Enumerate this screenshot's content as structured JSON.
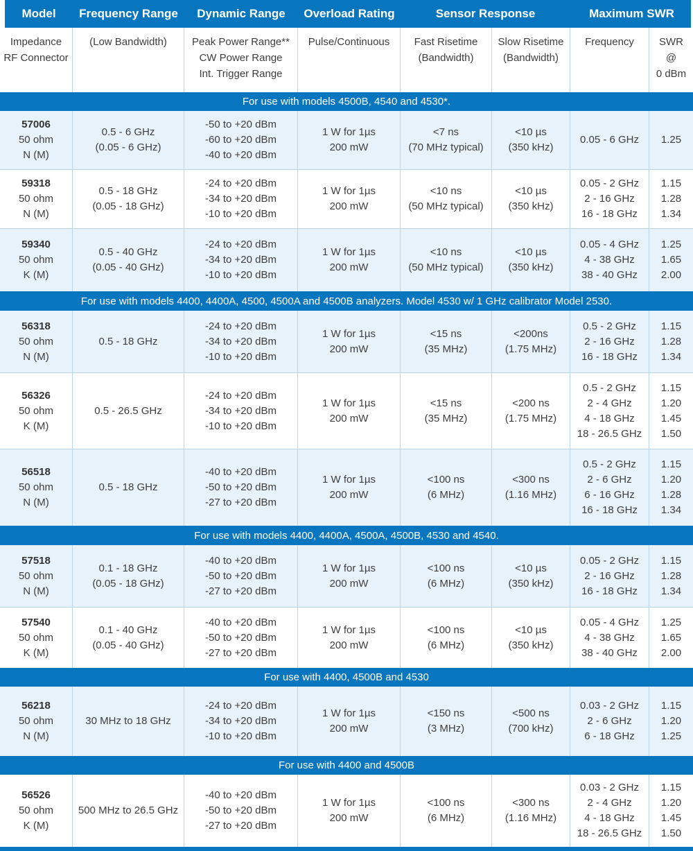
{
  "colors": {
    "brand_blue": "#0776be",
    "row_light_blue": "#e8f2fa",
    "grid_border": "#b7d4ea",
    "header_text": "#ffffff",
    "body_text": "#3d3d3d"
  },
  "header": {
    "model": "Model",
    "frequency_range": "Frequency Range",
    "dynamic_range": "Dynamic Range",
    "overload_rating": "Overload Rating",
    "sensor_response": "Sensor Response",
    "maximum_swr": "Maximum SWR"
  },
  "subheader": {
    "model": [
      "Impedance",
      "RF Connector"
    ],
    "frequency_range": "(Low Bandwidth)",
    "dynamic_range": [
      "Peak Power Range**",
      "CW Power Range",
      "Int. Trigger Range"
    ],
    "overload_rating": "Pulse/Continuous",
    "fast_risetime": [
      "Fast Risetime",
      "(Bandwidth)"
    ],
    "slow_risetime": [
      "Slow Risetime",
      "(Bandwidth)"
    ],
    "frequency": "Frequency",
    "swr": [
      "SWR",
      "@",
      "0 dBm"
    ]
  },
  "sections": [
    {
      "label": "For use with models 4500B, 4540 and 4530*.",
      "rows": [
        {
          "model": "57006",
          "impedance": "50 ohm",
          "connector": "N (M)",
          "frequency_range": [
            "0.5 - 6 GHz",
            "(0.05 - 6 GHz)"
          ],
          "dynamic_range": [
            "-50 to +20 dBm",
            "-60 to +20 dBm",
            "-40 to +20 dBm"
          ],
          "overload": [
            "1 W for 1µs",
            "200 mW"
          ],
          "fast_risetime": [
            "<7 ns",
            "(70 MHz typical)"
          ],
          "slow_risetime": [
            "<10 µs",
            "(350 kHz)"
          ],
          "swr_frequency": [
            "0.05 - 6 GHz"
          ],
          "swr": [
            "1.25"
          ]
        },
        {
          "model": "59318",
          "impedance": "50 ohm",
          "connector": "N (M)",
          "frequency_range": [
            "0.5 - 18 GHz",
            "(0.05 - 18 GHz)"
          ],
          "dynamic_range": [
            "-24 to +20 dBm",
            "-34 to +20 dBm",
            "-10 to +20 dBm"
          ],
          "overload": [
            "1 W for 1µs",
            "200 mW"
          ],
          "fast_risetime": [
            "<10 ns",
            "(50 MHz typical)"
          ],
          "slow_risetime": [
            "<10 µs",
            "(350 kHz)"
          ],
          "swr_frequency": [
            "0.05 - 2 GHz",
            "2 - 16 GHz",
            "16 - 18 GHz"
          ],
          "swr": [
            "1.15",
            "1.28",
            "1.34"
          ]
        },
        {
          "model": "59340",
          "impedance": "50 ohm",
          "connector": "K (M)",
          "frequency_range": [
            "0.5 - 40 GHz",
            "(0.05 - 40 GHz)"
          ],
          "dynamic_range": [
            "-24 to +20 dBm",
            "-34 to +20 dBm",
            "-10 to +20 dBm"
          ],
          "overload": [
            "1 W for 1µs",
            "200 mW"
          ],
          "fast_risetime": [
            "<10 ns",
            "(50 MHz typical)"
          ],
          "slow_risetime": [
            "<10 µs",
            "(350 kHz)"
          ],
          "swr_frequency": [
            "0.05 - 4 GHz",
            "4 - 38 GHz",
            "38 - 40 GHz"
          ],
          "swr": [
            "1.25",
            "1.65",
            "2.00"
          ]
        }
      ]
    },
    {
      "label": "For use with models 4400, 4400A, 4500, 4500A and 4500B analyzers. Model 4530 w/ 1 GHz calibrator Model 2530.",
      "rows": [
        {
          "model": "56318",
          "impedance": "50 ohm",
          "connector": "N (M)",
          "frequency_range": [
            "0.5 - 18 GHz"
          ],
          "dynamic_range": [
            "-24 to +20 dBm",
            "-34 to +20 dBm",
            "-10 to +20 dBm"
          ],
          "overload": [
            "1 W for 1µs",
            "200 mW"
          ],
          "fast_risetime": [
            "<15 ns",
            "(35 MHz)"
          ],
          "slow_risetime": [
            "<200ns",
            "(1.75 MHz)"
          ],
          "swr_frequency": [
            "0.5 - 2 GHz",
            "2 - 16 GHz",
            "16 - 18 GHz"
          ],
          "swr": [
            "1.15",
            "1.28",
            "1.34"
          ]
        },
        {
          "model": "56326",
          "impedance": "50 ohm",
          "connector": "K (M)",
          "frequency_range": [
            "0.5 - 26.5 GHz"
          ],
          "dynamic_range": [
            "-24 to +20 dBm",
            "-34 to +20 dBm",
            "-10 to +20 dBm"
          ],
          "overload": [
            "1 W for 1µs",
            "200 mW"
          ],
          "fast_risetime": [
            "<15 ns",
            "(35 MHz)"
          ],
          "slow_risetime": [
            "<200 ns",
            "(1.75 MHz)"
          ],
          "swr_frequency": [
            "0.5 - 2 GHz",
            "2 - 4 GHz",
            "4 - 18 GHz",
            "18 - 26.5 GHz"
          ],
          "swr": [
            "1.15",
            "1.20",
            "1.45",
            "1.50"
          ]
        },
        {
          "model": "56518",
          "impedance": "50 ohm",
          "connector": "N (M)",
          "frequency_range": [
            "0.5 - 18 GHz"
          ],
          "dynamic_range": [
            "-40 to +20 dBm",
            "-50 to +20 dBm",
            "-27 to +20 dBm"
          ],
          "overload": [
            "1 W for 1µs",
            "200 mW"
          ],
          "fast_risetime": [
            "<100 ns",
            "(6 MHz)"
          ],
          "slow_risetime": [
            "<300 ns",
            "(1.16 MHz)"
          ],
          "swr_frequency": [
            "0.5 - 2 GHz",
            "2 - 6 GHz",
            "6 - 16 GHz",
            "16 - 18 GHz"
          ],
          "swr": [
            "1.15",
            "1.20",
            "1.28",
            "1.34"
          ]
        }
      ]
    },
    {
      "label": "For use with models 4400, 4400A, 4500A, 4500B, 4530 and 4540.",
      "rows": [
        {
          "model": "57518",
          "impedance": "50 ohm",
          "connector": "N (M)",
          "frequency_range": [
            "0.1 - 18 GHz",
            "(0.05 - 18 GHz)"
          ],
          "dynamic_range": [
            "-40 to +20 dBm",
            "-50 to +20 dBm",
            "-27 to +20 dBm"
          ],
          "overload": [
            "1 W for 1µs",
            "200 mW"
          ],
          "fast_risetime": [
            "<100 ns",
            "(6 MHz)"
          ],
          "slow_risetime": [
            "<10 µs",
            "(350 kHz)"
          ],
          "swr_frequency": [
            "0.05 - 2 GHz",
            "2 - 16 GHz",
            "16 - 18 GHz"
          ],
          "swr": [
            "1.15",
            "1.28",
            "1.34"
          ]
        },
        {
          "model": "57540",
          "impedance": "50 ohm",
          "connector": "K (M)",
          "frequency_range": [
            "0.1 - 40 GHz",
            "(0.05 - 40 GHz)"
          ],
          "dynamic_range": [
            "-40 to +20 dBm",
            "-50 to +20 dBm",
            "-27 to +20 dBm"
          ],
          "overload": [
            "1 W for 1µs",
            "200 mW"
          ],
          "fast_risetime": [
            "<100 ns",
            "(6 MHz)"
          ],
          "slow_risetime": [
            "<10 µs",
            "(350 kHz)"
          ],
          "swr_frequency": [
            "0.05 - 4 GHz",
            "4 - 38 GHz",
            "38 - 40 GHz"
          ],
          "swr": [
            "1.25",
            "1.65",
            "2.00"
          ]
        }
      ]
    },
    {
      "label": "For use with 4400, 4500B and 4530",
      "rows": [
        {
          "model": "56218",
          "impedance": "50 ohm",
          "connector": "N (M)",
          "frequency_range": [
            "30 MHz to 18 GHz"
          ],
          "dynamic_range": [
            "-24 to +20 dBm",
            "-34 to +20 dBm",
            "-10 to +20 dBm"
          ],
          "overload": [
            "1 W for 1µs",
            "200 mW"
          ],
          "fast_risetime": [
            "<150 ns",
            "(3 MHz)"
          ],
          "slow_risetime": [
            "<500 ns",
            "(700 kHz)"
          ],
          "swr_frequency": [
            "0.03 - 2 GHz",
            "2 - 6 GHz",
            "6 - 18 GHz"
          ],
          "swr": [
            "1.15",
            "1.20",
            "1.25"
          ]
        }
      ]
    },
    {
      "label": "For use with 4400 and 4500B",
      "rows": [
        {
          "model": "56526",
          "impedance": "50 ohm",
          "connector": "K (M)",
          "frequency_range": [
            "500 MHz to 26.5 GHz"
          ],
          "dynamic_range": [
            "-40 to +20 dBm",
            "-50 to +20 dBm",
            "-27 to +20 dBm"
          ],
          "overload": [
            "1 W for 1µs",
            "200 mW"
          ],
          "fast_risetime": [
            "<100 ns",
            "(6 MHz)"
          ],
          "slow_risetime": [
            "<300 ns",
            "(1.16 MHz)"
          ],
          "swr_frequency": [
            "0.03 - 2 GHz",
            "2 - 4 GHz",
            "4 - 18 GHz",
            "18 - 26.5 GHz"
          ],
          "swr": [
            "1.15",
            "1.20",
            "1.45",
            "1.50"
          ]
        }
      ]
    }
  ]
}
